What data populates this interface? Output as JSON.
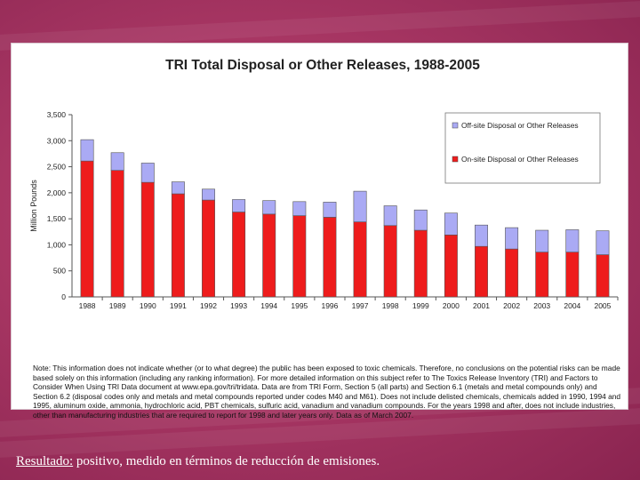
{
  "chart_data": {
    "type": "bar",
    "stacked": true,
    "title": "TRI Total Disposal or Other Releases, 1988-2005",
    "ylabel": "Million Pounds",
    "xlabel": "",
    "ylim": [
      0,
      3500
    ],
    "yticks": [
      "0",
      "500",
      "1,000",
      "1,500",
      "2,000",
      "2,500",
      "3,000",
      "3,500"
    ],
    "ytick_values": [
      0,
      500,
      1000,
      1500,
      2000,
      2500,
      3000,
      3500
    ],
    "grid": false,
    "legend_position": "top-right",
    "categories": [
      "1988",
      "1989",
      "1990",
      "1991",
      "1992",
      "1993",
      "1994",
      "1995",
      "1996",
      "1997",
      "1998",
      "1999",
      "2000",
      "2001",
      "2002",
      "2003",
      "2004",
      "2005"
    ],
    "series": [
      {
        "name": "On-site Disposal or Other Releases",
        "color": "#ee1c1c",
        "values": [
          2610,
          2430,
          2200,
          1980,
          1860,
          1630,
          1590,
          1560,
          1530,
          1440,
          1370,
          1280,
          1190,
          970,
          920,
          860,
          860,
          810
        ]
      },
      {
        "name": "Off-site Disposal or Other Releases",
        "color": "#aaaaf4",
        "values": [
          410,
          340,
          370,
          230,
          210,
          240,
          260,
          270,
          290,
          590,
          380,
          390,
          420,
          410,
          410,
          420,
          430,
          460
        ]
      }
    ],
    "legend_order": [
      1,
      0
    ]
  },
  "note": "Note: This information does not indicate whether (or to what degree) the public has been exposed to toxic chemicals. Therefore, no conclusions on the potential risks can be made based solely on this information (including any ranking information). For more detailed information on this subject refer to The Toxics Release Inventory (TRI) and Factors to Consider When Using TRI Data document at www.epa.gov/tri/tridata. Data are from TRI Form, Section 5 (all parts) and Section 6.1 (metals and metal compounds only) and Section 6.2 (disposal codes only and metals and metal compounds reported under codes M40 and M61). Does not include delisted chemicals, chemicals added in 1990, 1994 and 1995, aluminum oxide, ammonia, hydrochloric acid, PBT chemicals, sulfuric acid, vanadium and vanadium compounds. For the years 1998 and after, does not include industries, other than manufacturing industries that are required to report for 1998 and later years only. Data as of March 2007.",
  "caption": {
    "lead": "Resultado:",
    "text": " positivo, medido en términos de reducción de emisiones."
  }
}
